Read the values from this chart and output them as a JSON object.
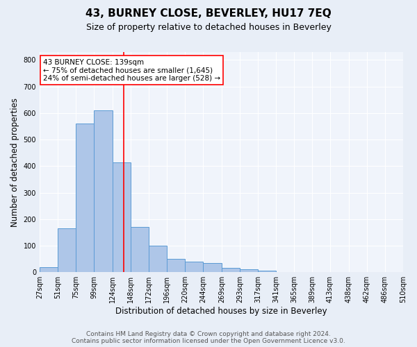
{
  "title": "43, BURNEY CLOSE, BEVERLEY, HU17 7EQ",
  "subtitle": "Size of property relative to detached houses in Beverley",
  "xlabel": "Distribution of detached houses by size in Beverley",
  "ylabel": "Number of detached properties",
  "bin_labels": [
    "27sqm",
    "51sqm",
    "75sqm",
    "99sqm",
    "124sqm",
    "148sqm",
    "172sqm",
    "196sqm",
    "220sqm",
    "244sqm",
    "269sqm",
    "293sqm",
    "317sqm",
    "341sqm",
    "365sqm",
    "389sqm",
    "413sqm",
    "438sqm",
    "462sqm",
    "486sqm",
    "510sqm"
  ],
  "bin_edges": [
    27,
    51,
    75,
    99,
    124,
    148,
    172,
    196,
    220,
    244,
    269,
    293,
    317,
    341,
    365,
    389,
    413,
    438,
    462,
    486,
    510
  ],
  "bar_heights": [
    20,
    165,
    560,
    610,
    415,
    170,
    100,
    50,
    40,
    35,
    15,
    10,
    5,
    0,
    0,
    0,
    0,
    0,
    0,
    0,
    5
  ],
  "bar_color": "#aec6e8",
  "bar_edge_color": "#5b9bd5",
  "vline_x": 139,
  "vline_color": "red",
  "ylim": [
    0,
    830
  ],
  "yticks": [
    0,
    100,
    200,
    300,
    400,
    500,
    600,
    700,
    800
  ],
  "annotation_text": "43 BURNEY CLOSE: 139sqm\n← 75% of detached houses are smaller (1,645)\n24% of semi-detached houses are larger (528) →",
  "annotation_box_color": "white",
  "annotation_box_edge": "red",
  "footer_line1": "Contains HM Land Registry data © Crown copyright and database right 2024.",
  "footer_line2": "Contains public sector information licensed under the Open Government Licence v3.0.",
  "background_color": "#e8eef7",
  "plot_bg_color": "#f0f4fb",
  "title_fontsize": 11,
  "subtitle_fontsize": 9,
  "axis_label_fontsize": 8.5,
  "tick_fontsize": 7,
  "annotation_fontsize": 7.5,
  "footer_fontsize": 6.5
}
